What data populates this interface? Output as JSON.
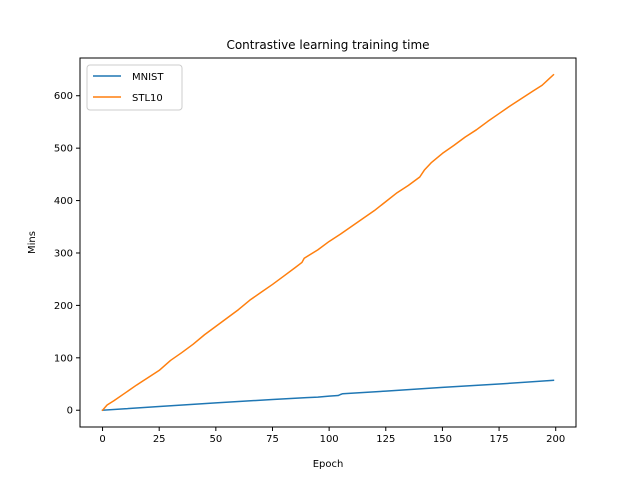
{
  "chart_data": {
    "type": "line",
    "title": "Contrastive learning training time",
    "xlabel": "Epoch",
    "ylabel": "Mins",
    "xlim": [
      -9.95,
      208.95
    ],
    "ylim": [
      -32,
      672
    ],
    "xticks": [
      0,
      25,
      50,
      75,
      100,
      125,
      150,
      175,
      200
    ],
    "yticks": [
      0,
      100,
      200,
      300,
      400,
      500,
      600
    ],
    "grid": false,
    "legend": {
      "placement": "top-left",
      "entries": [
        "MNIST",
        "STL10"
      ]
    },
    "series": [
      {
        "name": "MNIST",
        "color": "#1f77b4",
        "x": [
          0,
          10,
          25,
          50,
          75,
          90,
          95,
          100,
          104,
          105,
          106,
          125,
          150,
          175,
          199
        ],
        "y": [
          0,
          2.8,
          7.2,
          14,
          20.5,
          24,
          25,
          27,
          28,
          30,
          31.5,
          36.5,
          43.5,
          50,
          57
        ]
      },
      {
        "name": "STL10",
        "color": "#ff7f0e",
        "x": [
          0,
          2,
          5,
          10,
          15,
          20,
          25,
          30,
          35,
          40,
          45,
          50,
          55,
          60,
          65,
          70,
          75,
          80,
          85,
          88,
          89,
          95,
          100,
          105,
          110,
          115,
          120,
          125,
          130,
          135,
          140,
          142,
          145,
          150,
          155,
          160,
          165,
          170,
          175,
          180,
          185,
          190,
          194,
          197,
          199
        ],
        "y": [
          0,
          10,
          18,
          33,
          48,
          62,
          76,
          95,
          110,
          126,
          144,
          160,
          176,
          192,
          210,
          225,
          240,
          256,
          272,
          282,
          290,
          306,
          322,
          336,
          351,
          366,
          381,
          398,
          415,
          429,
          445,
          458,
          472,
          490,
          505,
          521,
          535,
          551,
          566,
          581,
          595,
          609,
          620,
          632,
          640
        ]
      }
    ]
  }
}
